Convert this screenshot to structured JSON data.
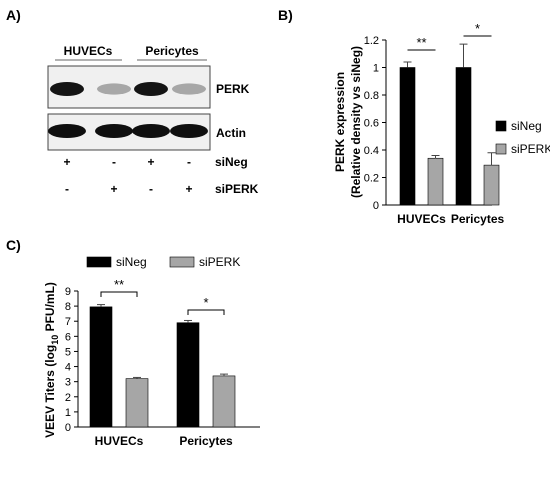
{
  "panels": {
    "a_label": "A)",
    "b_label": "B)",
    "c_label": "C)"
  },
  "blot": {
    "group_labels": [
      "HUVECs",
      "Pericytes"
    ],
    "row_labels": [
      "PERK",
      "Actin"
    ],
    "treatments": [
      {
        "name": "siNeg",
        "signs": [
          "+",
          "-",
          "+",
          "-"
        ]
      },
      {
        "name": "siPERK",
        "signs": [
          "-",
          "+",
          "-",
          "+"
        ]
      }
    ],
    "band_intensity": {
      "PERK": [
        1.0,
        0.3,
        1.0,
        0.3
      ],
      "Actin": [
        1.0,
        1.0,
        1.0,
        1.0
      ]
    }
  },
  "chart_data": [
    {
      "type": "bar",
      "panel": "B",
      "categories": [
        "HUVECs",
        "Pericytes"
      ],
      "series": [
        {
          "name": "siNeg",
          "values": [
            1.0,
            1.0
          ],
          "errors": [
            0.04,
            0.17
          ],
          "color": "#000000"
        },
        {
          "name": "siPERK",
          "values": [
            0.34,
            0.29
          ],
          "errors": [
            0.02,
            0.09
          ],
          "color": "#a6a6a6"
        }
      ],
      "ylabel_line1": "PERK expression",
      "ylabel_line2": "(Relative density vs siNeg)",
      "ylim": [
        0,
        1.2
      ],
      "yticks": [
        "0",
        "0.2",
        "0.4",
        "0.6",
        "0.8",
        "1",
        "1.2"
      ],
      "significance": [
        "**",
        "*"
      ],
      "legend_placement": "right"
    },
    {
      "type": "bar",
      "panel": "C",
      "categories": [
        "HUVECs",
        "Pericytes"
      ],
      "series": [
        {
          "name": "siNeg",
          "values": [
            7.95,
            6.9
          ],
          "errors": [
            0.15,
            0.15
          ],
          "color": "#000000"
        },
        {
          "name": "siPERK",
          "values": [
            3.2,
            3.38
          ],
          "errors": [
            0.08,
            0.12
          ],
          "color": "#a6a6a6"
        }
      ],
      "ylabel_pre": "VEEV Titers (log",
      "ylabel_sub": "10",
      "ylabel_post": " PFU/mL)",
      "ylim": [
        0,
        9
      ],
      "yticks": [
        "0",
        "1",
        "2",
        "3",
        "4",
        "5",
        "6",
        "7",
        "8",
        "9"
      ],
      "significance": [
        "**",
        "*"
      ],
      "legend_placement": "top"
    }
  ]
}
